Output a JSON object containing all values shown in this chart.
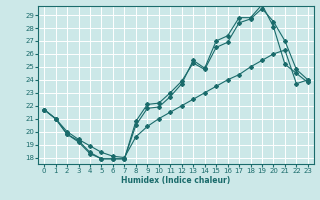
{
  "xlabel": "Humidex (Indice chaleur)",
  "bg_color": "#cce8e8",
  "grid_color": "#ffffff",
  "line_color": "#1a6b6b",
  "xlim": [
    -0.5,
    23.5
  ],
  "ylim": [
    17.5,
    29.7
  ],
  "xticks": [
    0,
    1,
    2,
    3,
    4,
    5,
    6,
    7,
    8,
    9,
    10,
    11,
    12,
    13,
    14,
    15,
    16,
    17,
    18,
    19,
    20,
    21,
    22,
    23
  ],
  "yticks": [
    18,
    19,
    20,
    21,
    22,
    23,
    24,
    25,
    26,
    27,
    28,
    29
  ],
  "line1_x": [
    0,
    1,
    2,
    3,
    4,
    5,
    6,
    7,
    8,
    9,
    10,
    11,
    12,
    13,
    14,
    15,
    16,
    17,
    18,
    19,
    20,
    21,
    22,
    23
  ],
  "line1_y": [
    21.7,
    21.0,
    19.8,
    19.3,
    18.4,
    17.9,
    17.9,
    17.9,
    20.8,
    22.1,
    22.2,
    23.0,
    23.9,
    25.3,
    24.8,
    26.5,
    26.9,
    28.4,
    28.7,
    29.5,
    28.5,
    27.0,
    24.8,
    24.0
  ],
  "line2_x": [
    0,
    1,
    2,
    3,
    4,
    5,
    6,
    7,
    8,
    9,
    10,
    11,
    12,
    13,
    14,
    15,
    16,
    17,
    18,
    19,
    20,
    21,
    22,
    23
  ],
  "line2_y": [
    21.7,
    21.0,
    19.8,
    19.2,
    18.3,
    17.9,
    17.9,
    17.9,
    20.5,
    21.8,
    21.9,
    22.7,
    23.7,
    25.5,
    24.9,
    27.0,
    27.4,
    28.8,
    28.8,
    29.8,
    28.1,
    25.2,
    24.5,
    23.8
  ],
  "line3_x": [
    0,
    1,
    2,
    3,
    4,
    5,
    6,
    7,
    8,
    9,
    10,
    11,
    12,
    13,
    14,
    15,
    16,
    17,
    18,
    19,
    20,
    21,
    22,
    23
  ],
  "line3_y": [
    21.7,
    21.0,
    20.0,
    19.4,
    18.9,
    18.4,
    18.1,
    18.0,
    19.6,
    20.4,
    21.0,
    21.5,
    22.0,
    22.5,
    23.0,
    23.5,
    24.0,
    24.4,
    25.0,
    25.5,
    26.0,
    26.3,
    23.7,
    24.0
  ]
}
